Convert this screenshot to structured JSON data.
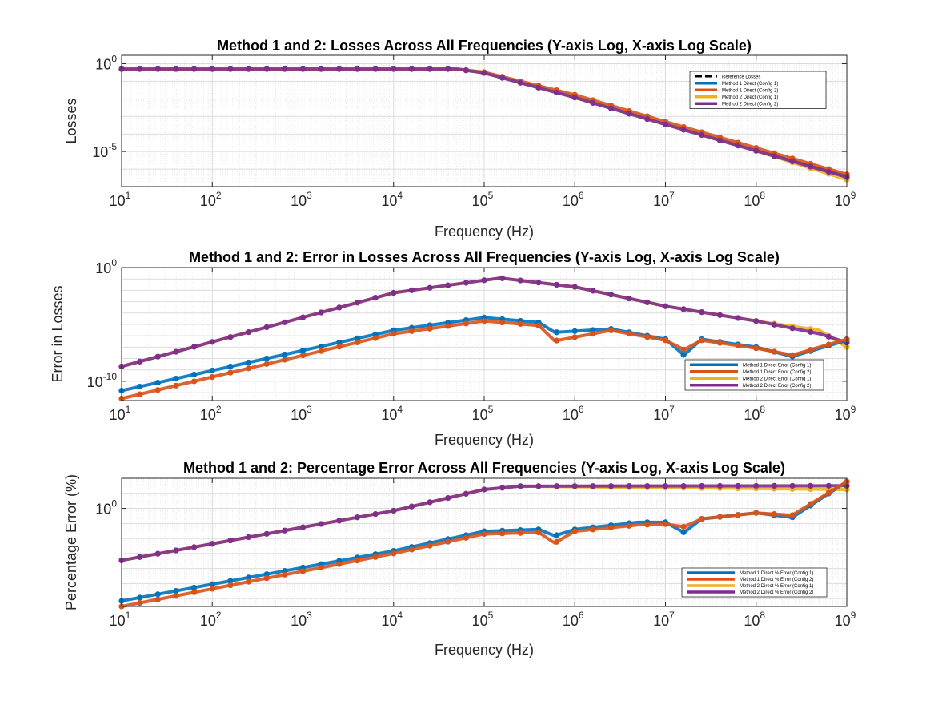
{
  "chart_data": [
    {
      "type": "line",
      "title": "Method 1 and 2: Losses Across All Frequencies (Y-axis Log, X-axis Log Scale)",
      "xlabel": "Frequency (Hz)",
      "ylabel": "Losses",
      "xscale": "log",
      "yscale": "log",
      "xlim": [
        10,
        1000000000
      ],
      "ylim": [
        1e-07,
        3
      ],
      "x_tick_labels": [
        {
          "base": "10",
          "exp": "1"
        },
        {
          "base": "10",
          "exp": "2"
        },
        {
          "base": "10",
          "exp": "3"
        },
        {
          "base": "10",
          "exp": "4"
        },
        {
          "base": "10",
          "exp": "5"
        },
        {
          "base": "10",
          "exp": "6"
        },
        {
          "base": "10",
          "exp": "7"
        },
        {
          "base": "10",
          "exp": "8"
        },
        {
          "base": "10",
          "exp": "9"
        }
      ],
      "y_tick_labels": [
        {
          "value": 1,
          "base": "10",
          "exp": "0"
        },
        {
          "value": 1e-05,
          "base": "10",
          "exp": "-5"
        }
      ],
      "grid": true,
      "legend_position": "top-right",
      "legend": [
        {
          "label": "Reference Losses",
          "color": "#000000",
          "dashed": true
        },
        {
          "label": "Method 1 Direct (Config 1)",
          "color": "#0072BD",
          "dashed": false
        },
        {
          "label": "Method 1 Direct (Config 2)",
          "color": "#D95319",
          "dashed": false
        },
        {
          "label": "Method 2 Direct (Config 1)",
          "color": "#EDB120",
          "dashed": false
        },
        {
          "label": "Method 2 Direct (Config 2)",
          "color": "#7E2F8E",
          "dashed": false
        }
      ],
      "series": [
        {
          "name": "Method 1 Direct (Config 1)",
          "color": "#0072BD",
          "points": [
            [
              10,
              0.5
            ],
            [
              50000,
              0.5
            ],
            [
              100000,
              0.3
            ],
            [
              1000000,
              0.012
            ],
            [
              10000000,
              0.00035
            ],
            [
              100000000,
              1.1e-05
            ],
            [
              1000000000,
              3.8e-07
            ]
          ]
        },
        {
          "name": "Method 1 Direct (Config 2)",
          "color": "#D95319",
          "points": [
            [
              10,
              0.5
            ],
            [
              50000,
              0.5
            ],
            [
              100000,
              0.33
            ],
            [
              1000000,
              0.017
            ],
            [
              10000000,
              0.0005
            ],
            [
              100000000,
              1.6e-05
            ],
            [
              1000000000,
              5e-07
            ]
          ]
        },
        {
          "name": "Method 2 Direct (Config 1)",
          "color": "#EDB120",
          "points": [
            [
              10,
              0.5
            ],
            [
              50000,
              0.5
            ],
            [
              100000,
              0.3
            ],
            [
              1000000,
              0.012
            ],
            [
              10000000,
              0.00035
            ],
            [
              100000000,
              1.1e-05
            ],
            [
              1000000000,
              2.5e-07
            ]
          ]
        },
        {
          "name": "Method 2 Direct (Config 2)",
          "color": "#7E2F8E",
          "points": [
            [
              10,
              0.5
            ],
            [
              50000,
              0.5
            ],
            [
              100000,
              0.3
            ],
            [
              1000000,
              0.012
            ],
            [
              10000000,
              0.00035
            ],
            [
              100000000,
              1.1e-05
            ],
            [
              1000000000,
              3.5e-07
            ]
          ]
        }
      ]
    },
    {
      "type": "line",
      "title": "Method 1 and 2: Error in Losses Across All Frequencies (Y-axis Log, X-axis Log Scale)",
      "xlabel": "Frequency (Hz)",
      "ylabel": "Error in Losses",
      "xscale": "log",
      "yscale": "log",
      "xlim": [
        10,
        1000000000
      ],
      "ylim": [
        2e-12,
        1
      ],
      "x_tick_labels": [
        {
          "base": "10",
          "exp": "1"
        },
        {
          "base": "10",
          "exp": "2"
        },
        {
          "base": "10",
          "exp": "3"
        },
        {
          "base": "10",
          "exp": "4"
        },
        {
          "base": "10",
          "exp": "5"
        },
        {
          "base": "10",
          "exp": "6"
        },
        {
          "base": "10",
          "exp": "7"
        },
        {
          "base": "10",
          "exp": "8"
        },
        {
          "base": "10",
          "exp": "9"
        }
      ],
      "y_tick_labels": [
        {
          "value": 1,
          "base": "10",
          "exp": "0"
        },
        {
          "value": 1e-10,
          "base": "10",
          "exp": "-10"
        }
      ],
      "grid": true,
      "legend_position": "bottom-right",
      "legend": [
        {
          "label": "Method 1 Direct Error (Config 1)",
          "color": "#0072BD",
          "dashed": false
        },
        {
          "label": "Method 1 Direct Error (Config 2)",
          "color": "#D95319",
          "dashed": false
        },
        {
          "label": "Method 2 Direct Error (Config 1)",
          "color": "#EDB120",
          "dashed": false
        },
        {
          "label": "Method 2 Direct Error (Config 2)",
          "color": "#7E2F8E",
          "dashed": false
        }
      ],
      "series": [
        {
          "name": "Method 2 Direct Error (Config 1)",
          "color": "#EDB120",
          "points": [
            [
              10,
              2e-09
            ],
            [
              10000,
              0.006
            ],
            [
              150000,
              0.12
            ],
            [
              1000000,
              0.02
            ],
            [
              10000000,
              0.0004
            ],
            [
              100000000,
              2e-05
            ],
            [
              500000000,
              3e-06
            ],
            [
              1000000000,
              1e-07
            ]
          ]
        },
        {
          "name": "Method 2 Direct Error (Config 2)",
          "color": "#7E2F8E",
          "points": [
            [
              10,
              2e-09
            ],
            [
              10000,
              0.006
            ],
            [
              150000,
              0.12
            ],
            [
              1000000,
              0.02
            ],
            [
              10000000,
              0.0004
            ],
            [
              100000000,
              2e-05
            ],
            [
              500000000,
              1.5e-06
            ],
            [
              1000000000,
              2.5e-07
            ]
          ]
        },
        {
          "name": "Method 1 Direct Error (Config 1)",
          "color": "#0072BD",
          "points": [
            [
              10,
              1.5e-11
            ],
            [
              10000,
              3e-06
            ],
            [
              100000,
              4e-05
            ],
            [
              400000,
              1.5e-05
            ],
            [
              600000,
              2e-06
            ],
            [
              2500000,
              4e-06
            ],
            [
              10000000,
              5e-07
            ],
            [
              16000000,
              2e-08
            ],
            [
              25000000,
              5e-07
            ],
            [
              100000000,
              1e-07
            ],
            [
              250000000,
              1.5e-08
            ],
            [
              1000000000,
              4e-07
            ]
          ]
        },
        {
          "name": "Method 1 Direct Error (Config 2)",
          "color": "#D95319",
          "points": [
            [
              10,
              3e-12
            ],
            [
              10000,
              1.5e-06
            ],
            [
              100000,
              2e-05
            ],
            [
              400000,
              8e-06
            ],
            [
              600000,
              3.5e-07
            ],
            [
              2500000,
              3e-06
            ],
            [
              10000000,
              4e-07
            ],
            [
              16000000,
              6e-08
            ],
            [
              25000000,
              4e-07
            ],
            [
              100000000,
              8e-08
            ],
            [
              250000000,
              2e-08
            ],
            [
              1000000000,
              5e-07
            ]
          ]
        }
      ]
    },
    {
      "type": "line",
      "title": "Method 1 and 2: Percentage Error Across All Frequencies (Y-axis Log, X-axis Log Scale)",
      "xlabel": "Frequency (Hz)",
      "ylabel": "Percentage Error (%)",
      "xscale": "log",
      "yscale": "log",
      "xlim": [
        10,
        1000000000
      ],
      "ylim": [
        3e-07,
        100
      ],
      "x_tick_labels": [
        {
          "base": "10",
          "exp": "1"
        },
        {
          "base": "10",
          "exp": "2"
        },
        {
          "base": "10",
          "exp": "3"
        },
        {
          "base": "10",
          "exp": "4"
        },
        {
          "base": "10",
          "exp": "5"
        },
        {
          "base": "10",
          "exp": "6"
        },
        {
          "base": "10",
          "exp": "7"
        },
        {
          "base": "10",
          "exp": "8"
        },
        {
          "base": "10",
          "exp": "9"
        }
      ],
      "y_tick_labels": [
        {
          "value": 1,
          "base": "10",
          "exp": "0"
        }
      ],
      "grid": true,
      "legend_position": "bottom-right",
      "legend": [
        {
          "label": "Method 1 Direct % Error (Config 1)",
          "color": "#0072BD",
          "dashed": false
        },
        {
          "label": "Method 1 Direct % Error (Config 2)",
          "color": "#D95319",
          "dashed": false
        },
        {
          "label": "Method 2 Direct % Error (Config 1)",
          "color": "#EDB120",
          "dashed": false
        },
        {
          "label": "Method 2 Direct % Error (Config 2)",
          "color": "#7E2F8E",
          "dashed": false
        }
      ],
      "series": [
        {
          "name": "Method 2 Direct % Error (Config 1)",
          "color": "#EDB120",
          "points": [
            [
              10,
              0.00035
            ],
            [
              10000,
              0.7
            ],
            [
              100000,
              18
            ],
            [
              250000,
              30
            ],
            [
              1000000000,
              18
            ]
          ]
        },
        {
          "name": "Method 2 Direct % Error (Config 2)",
          "color": "#7E2F8E",
          "points": [
            [
              10,
              0.00035
            ],
            [
              10000,
              0.7
            ],
            [
              100000,
              18
            ],
            [
              250000,
              30
            ],
            [
              1000000000,
              32
            ]
          ]
        },
        {
          "name": "Method 1 Direct % Error (Config 1)",
          "color": "#0072BD",
          "points": [
            [
              10,
              7e-07
            ],
            [
              10000,
              0.0015
            ],
            [
              100000,
              0.03
            ],
            [
              400000,
              0.04
            ],
            [
              600000,
              0.015
            ],
            [
              1000000,
              0.04
            ],
            [
              5000000,
              0.12
            ],
            [
              10000000,
              0.12
            ],
            [
              16000000,
              0.025
            ],
            [
              25000000,
              0.2
            ],
            [
              100000000,
              0.5
            ],
            [
              250000000,
              0.25
            ],
            [
              1000000000,
              60
            ]
          ]
        },
        {
          "name": "Method 1 Direct % Error (Config 2)",
          "color": "#D95319",
          "points": [
            [
              10,
              3e-07
            ],
            [
              10000,
              0.001
            ],
            [
              100000,
              0.02
            ],
            [
              400000,
              0.025
            ],
            [
              600000,
              0.005
            ],
            [
              1000000,
              0.03
            ],
            [
              5000000,
              0.08
            ],
            [
              10000000,
              0.09
            ],
            [
              16000000,
              0.06
            ],
            [
              25000000,
              0.2
            ],
            [
              100000000,
              0.5
            ],
            [
              250000000,
              0.35
            ],
            [
              1000000000,
              60
            ]
          ]
        }
      ]
    }
  ]
}
